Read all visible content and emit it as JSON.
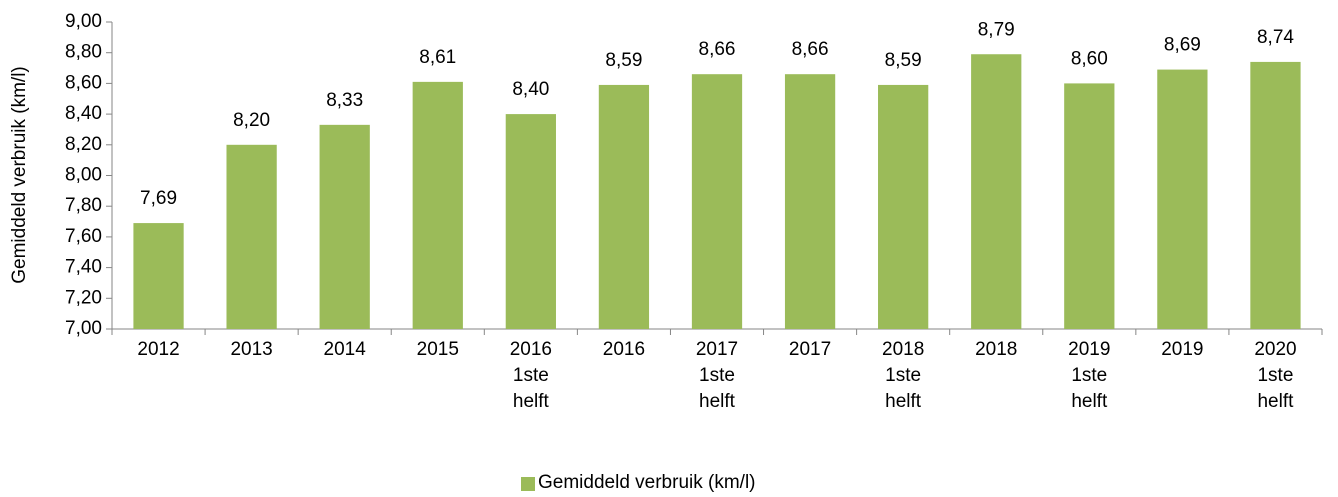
{
  "chart_data": {
    "type": "bar",
    "y_label": "Gemiddeld verbruik (km/l)",
    "categories": [
      "2012",
      "2013",
      "2014",
      "2015",
      "2016\n1ste\nhelft",
      "2016",
      "2017\n1ste\nhelft",
      "2017",
      "2018\n1ste\nhelft",
      "2018",
      "2019\n1ste\nhelft",
      "2019",
      "2020\n1ste\nhelft"
    ],
    "series": [
      {
        "name": "Gemiddeld verbruik (km/l)",
        "color": "#9bbb59",
        "values": [
          7.69,
          8.2,
          8.33,
          8.61,
          8.4,
          8.59,
          8.66,
          8.66,
          8.59,
          8.79,
          8.6,
          8.69,
          8.74
        ],
        "value_labels": [
          "7,69",
          "8,20",
          "8,33",
          "8,61",
          "8,40",
          "8,59",
          "8,66",
          "8,66",
          "8,59",
          "8,79",
          "8,60",
          "8,69",
          "8,74"
        ]
      }
    ],
    "ylim": [
      7,
      9
    ],
    "yticks": [
      {
        "value": 7,
        "label": "7,00"
      },
      {
        "value": 7.2,
        "label": "7,20"
      },
      {
        "value": 7.4,
        "label": "7,40"
      },
      {
        "value": 7.6,
        "label": "7,60"
      },
      {
        "value": 7.8,
        "label": "7,80"
      },
      {
        "value": 8,
        "label": "8,00"
      },
      {
        "value": 8.2,
        "label": "8,20"
      },
      {
        "value": 8.4,
        "label": "8,40"
      },
      {
        "value": 8.6,
        "label": "8,60"
      },
      {
        "value": 8.8,
        "label": "8,80"
      },
      {
        "value": 9,
        "label": "9,00"
      }
    ],
    "grid": false,
    "legend": "bottom"
  }
}
